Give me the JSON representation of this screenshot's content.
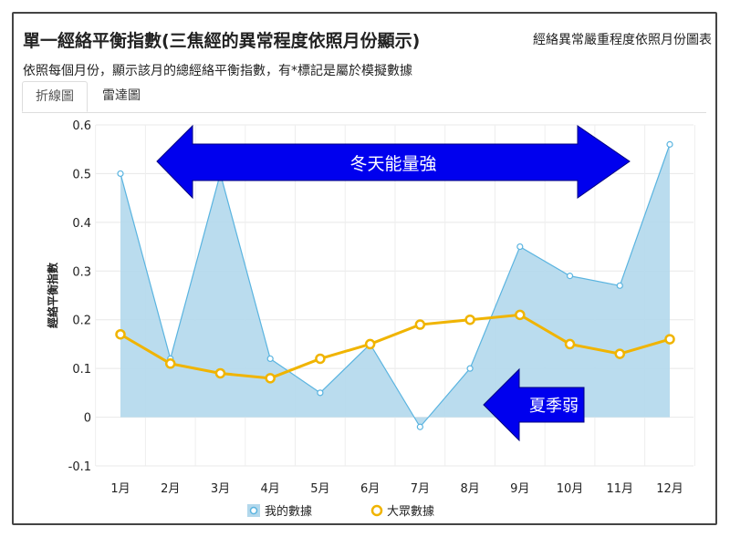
{
  "header": {
    "title": "單一經絡平衡指數(三焦經的異常程度依照月份顯示)",
    "subtitle": "經絡異常嚴重程度依照月份圖表",
    "description": "依照每個月份，顯示該月的總經絡平衡指數，有*標記是屬於模擬數據"
  },
  "tabs": [
    {
      "label": "折線圖",
      "active": true
    },
    {
      "label": "雷達圖",
      "active": false
    }
  ],
  "annotations": {
    "winter": "冬天能量強",
    "summer": "夏季弱"
  },
  "colors": {
    "mine": "#5ab4e0",
    "mine_fill": "#b3d8ec",
    "public": "#f0b400",
    "arrow": "#0000ee"
  },
  "chart_data": {
    "type": "line",
    "title": "",
    "xlabel": "",
    "ylabel": "經絡平衡指數",
    "categories": [
      "1月",
      "2月",
      "3月",
      "4月",
      "5月",
      "6月",
      "7月",
      "8月",
      "9月",
      "10月",
      "11月",
      "12月"
    ],
    "yticks": [
      "0.6",
      "0.5",
      "0.4",
      "0.3",
      "0.2",
      "0.1",
      "0",
      "-0.1"
    ],
    "ylim": [
      -0.1,
      0.6
    ],
    "grid": true,
    "legend": "bottom",
    "series": [
      {
        "name": "我的數據",
        "area": true,
        "values": [
          0.5,
          0.12,
          0.5,
          0.12,
          0.05,
          0.15,
          -0.02,
          0.1,
          0.35,
          0.29,
          0.27,
          0.56
        ]
      },
      {
        "name": "大眾數據",
        "area": false,
        "values": [
          0.17,
          0.11,
          0.09,
          0.08,
          0.12,
          0.15,
          0.19,
          0.2,
          0.21,
          0.15,
          0.13,
          0.16
        ]
      }
    ]
  }
}
